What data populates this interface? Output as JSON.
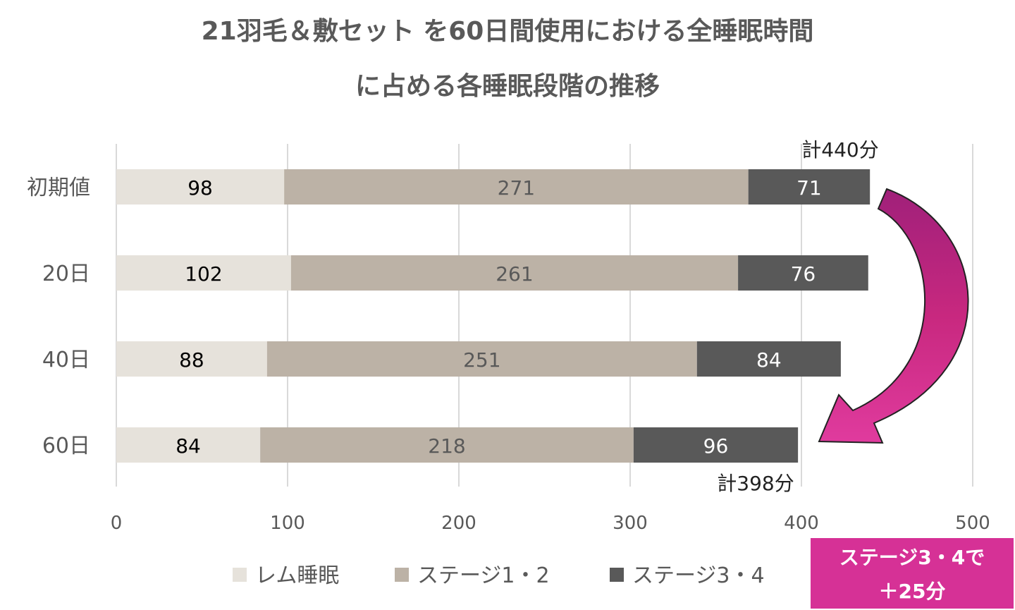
{
  "chart_data": {
    "type": "bar",
    "orientation": "horizontal",
    "stacked": true,
    "title_lines": [
      "21羽毛＆敷セット を60日間使用における全睡眠時間",
      "に占める各睡眠段階の推移"
    ],
    "categories": [
      "初期値",
      "20日",
      "40日",
      "60日"
    ],
    "series": [
      {
        "name": "レム睡眠",
        "color": "#e6e2db",
        "label_color": "#000000",
        "values": [
          98,
          102,
          88,
          84
        ]
      },
      {
        "name": "ステージ1・2",
        "color": "#bcb2a6",
        "label_color": "#595959",
        "values": [
          271,
          261,
          251,
          218
        ]
      },
      {
        "name": "ステージ3・4",
        "color": "#595959",
        "label_color": "#ffffff",
        "values": [
          71,
          76,
          84,
          96
        ]
      }
    ],
    "xlim": [
      0,
      500
    ],
    "xticks": [
      "0",
      "100",
      "200",
      "300",
      "400",
      "500"
    ],
    "grid": "vertical",
    "legend_position": "bottom",
    "annotations": {
      "total_first": "計440分",
      "total_last": "計398分",
      "callout_line1": "ステージ3・4で",
      "callout_line2": "＋25分",
      "callout_color": "#d63196",
      "arrow_color": "#c8287f"
    }
  }
}
